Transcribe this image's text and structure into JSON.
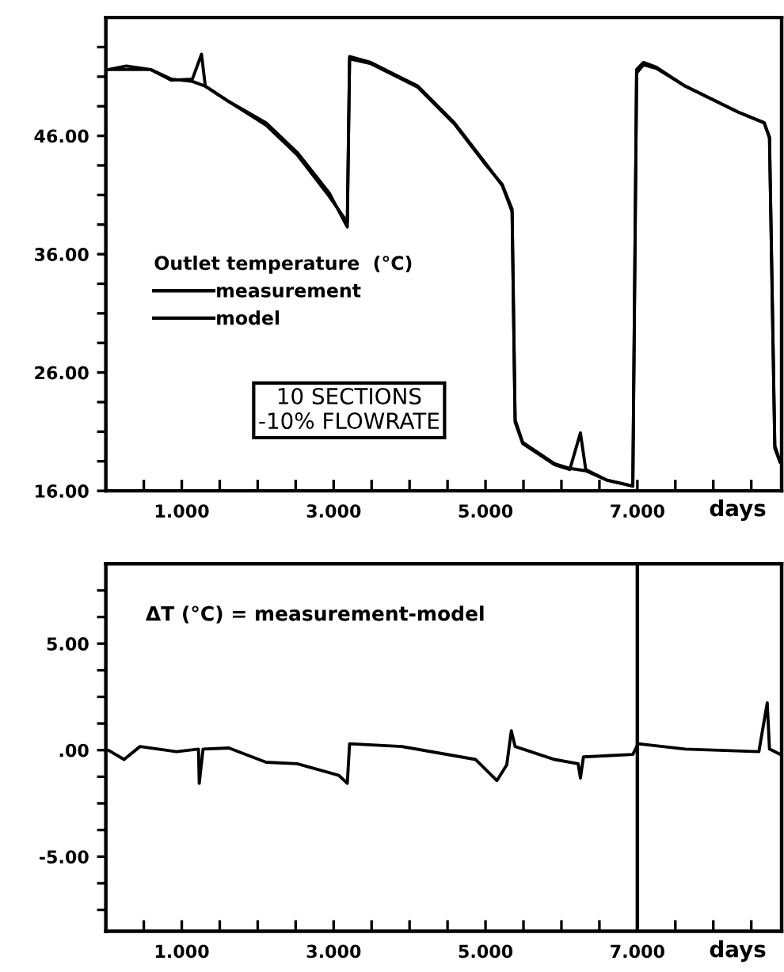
{
  "chart_data": [
    {
      "type": "line",
      "xlabel": "days",
      "legend": "center left",
      "legend_title": "Outlet temperature  (°C)",
      "xlim": [
        0,
        8.9
      ],
      "ylim": [
        16,
        56
      ],
      "xticks": [
        {
          "value": 0.5,
          "label": null
        },
        {
          "value": 1,
          "label": "1.000"
        },
        {
          "value": 1.5,
          "label": null
        },
        {
          "value": 2,
          "label": null
        },
        {
          "value": 2.5,
          "label": null
        },
        {
          "value": 3,
          "label": "3.000"
        },
        {
          "value": 3.5,
          "label": null
        },
        {
          "value": 4,
          "label": null
        },
        {
          "value": 4.5,
          "label": null
        },
        {
          "value": 5,
          "label": "5.000"
        },
        {
          "value": 5.5,
          "label": null
        },
        {
          "value": 6,
          "label": null
        },
        {
          "value": 6.5,
          "label": null
        },
        {
          "value": 7,
          "label": "7.000"
        },
        {
          "value": 7.5,
          "label": null
        },
        {
          "value": 8,
          "label": null
        },
        {
          "value": 8.5,
          "label": null
        }
      ],
      "yticks": [
        {
          "value": 16,
          "label": "16.00"
        },
        {
          "value": 18.5,
          "label": null
        },
        {
          "value": 21,
          "label": null
        },
        {
          "value": 23.5,
          "label": null
        },
        {
          "value": 26,
          "label": "26.00"
        },
        {
          "value": 28.5,
          "label": null
        },
        {
          "value": 31,
          "label": null
        },
        {
          "value": 33.5,
          "label": null
        },
        {
          "value": 36,
          "label": "36.00"
        },
        {
          "value": 38.5,
          "label": null
        },
        {
          "value": 41,
          "label": null
        },
        {
          "value": 43.5,
          "label": null
        },
        {
          "value": 46,
          "label": "46.00"
        },
        {
          "value": 48.5,
          "label": null
        },
        {
          "value": 51,
          "label": null
        },
        {
          "value": 53.5,
          "label": null
        }
      ],
      "annotations": [
        "10 SECTIONS\n-10% FLOWRATE"
      ],
      "series": [
        {
          "name": "measurement",
          "color": "#000000",
          "x": [
            0.03,
            0.27,
            0.59,
            0.86,
            1.14,
            1.26,
            1.31,
            1.62,
            2.11,
            2.52,
            2.94,
            3.18,
            3.21,
            3.49,
            4.11,
            4.59,
            5.01,
            5.22,
            5.35,
            5.39,
            5.49,
            5.91,
            6.11,
            6.25,
            6.32,
            6.6,
            6.94,
            6.99,
            7.08,
            7.25,
            7.63,
            8.33,
            8.67,
            8.74,
            8.81,
            8.88
          ],
          "values": [
            51.6,
            51.9,
            51.6,
            50.7,
            50.8,
            52.9,
            50.2,
            48.9,
            46.9,
            44.4,
            40.9,
            38.7,
            52.7,
            52.2,
            50.2,
            47.1,
            43.6,
            41.8,
            39.6,
            21.8,
            20.0,
            18.2,
            17.8,
            20.9,
            17.8,
            16.9,
            16.4,
            51.6,
            52.2,
            51.8,
            50.2,
            48.0,
            47.1,
            45.8,
            19.6,
            18.4
          ]
        },
        {
          "name": "model",
          "color": "#000000",
          "x": [
            0.03,
            0.59,
            0.86,
            1.14,
            1.31,
            1.62,
            2.11,
            2.52,
            2.94,
            3.18,
            3.21,
            3.49,
            4.11,
            4.59,
            5.01,
            5.22,
            5.35,
            5.39,
            5.49,
            5.91,
            6.11,
            6.32,
            6.6,
            6.94,
            6.99,
            7.08,
            7.25,
            7.63,
            8.33,
            8.67,
            8.74,
            8.81,
            8.88
          ],
          "values": [
            51.6,
            51.6,
            50.8,
            50.6,
            50.2,
            48.9,
            47.1,
            44.6,
            41.2,
            38.3,
            52.5,
            52.1,
            50.1,
            47.0,
            43.5,
            41.9,
            39.8,
            22.0,
            20.1,
            18.3,
            17.9,
            17.7,
            16.9,
            16.4,
            51.3,
            52.0,
            51.7,
            50.2,
            48.0,
            47.1,
            45.9,
            19.8,
            18.5
          ]
        }
      ]
    },
    {
      "type": "line",
      "xlabel": "days",
      "xlim": [
        0,
        8.9
      ],
      "ylim": [
        -8.5,
        8.75
      ],
      "xticks": [
        {
          "value": 0.5,
          "label": null
        },
        {
          "value": 1,
          "label": "1.000"
        },
        {
          "value": 1.5,
          "label": null
        },
        {
          "value": 2,
          "label": null
        },
        {
          "value": 2.5,
          "label": null
        },
        {
          "value": 3,
          "label": "3.000"
        },
        {
          "value": 3.5,
          "label": null
        },
        {
          "value": 4,
          "label": null
        },
        {
          "value": 4.5,
          "label": null
        },
        {
          "value": 5,
          "label": "5.000"
        },
        {
          "value": 5.5,
          "label": null
        },
        {
          "value": 6,
          "label": null
        },
        {
          "value": 6.5,
          "label": null
        },
        {
          "value": 7,
          "label": "7.000"
        },
        {
          "value": 7.5,
          "label": null
        },
        {
          "value": 8,
          "label": null
        },
        {
          "value": 8.5,
          "label": null
        }
      ],
      "yticks": [
        {
          "value": -7.5,
          "label": null
        },
        {
          "value": -6.25,
          "label": null
        },
        {
          "value": -5,
          "label": "-5.00"
        },
        {
          "value": -3.75,
          "label": null
        },
        {
          "value": -2.5,
          "label": null
        },
        {
          "value": -1.25,
          "label": null
        },
        {
          "value": 0,
          "label": ".00"
        },
        {
          "value": 1.25,
          "label": null
        },
        {
          "value": 2.5,
          "label": null
        },
        {
          "value": 3.75,
          "label": null
        },
        {
          "value": 5,
          "label": "5.00"
        },
        {
          "value": 6.25,
          "label": null
        },
        {
          "value": 7.5,
          "label": null
        }
      ],
      "annotations": [
        "ΔT (°C) = measurement-model"
      ],
      "ref_lines": [
        {
          "axis": "x",
          "value": 7,
          "color": "#000000"
        }
      ],
      "series": [
        {
          "color": "#000000",
          "x": [
            0.03,
            0.24,
            0.45,
            0.93,
            1.22,
            1.23,
            1.28,
            1.62,
            2.11,
            2.52,
            3.07,
            3.18,
            3.21,
            3.9,
            4.87,
            5.15,
            5.28,
            5.34,
            5.39,
            5.91,
            6.22,
            6.25,
            6.29,
            6.94,
            7.01,
            7.63,
            8.6,
            8.71,
            8.74,
            8.88
          ],
          "values": [
            0,
            -0.44,
            0.17,
            -0.07,
            0.05,
            -1.56,
            0.05,
            0.1,
            -0.57,
            -0.64,
            -1.19,
            -1.56,
            0.3,
            0.17,
            -0.44,
            -1.43,
            -0.69,
            0.91,
            0.17,
            -0.44,
            -0.64,
            -1.31,
            -0.32,
            -0.2,
            0.3,
            0.05,
            -0.07,
            2.22,
            0.05,
            -0.2
          ]
        }
      ]
    }
  ]
}
